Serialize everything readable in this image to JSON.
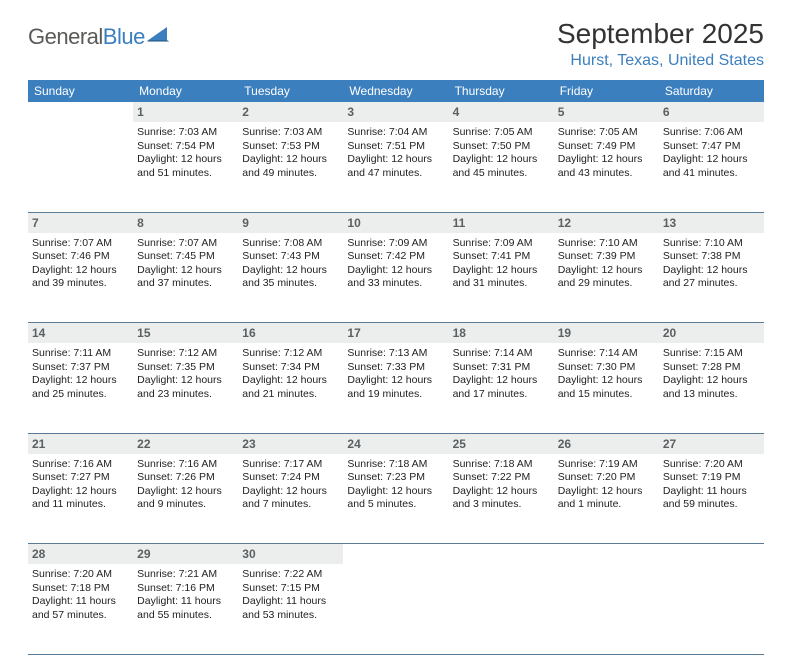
{
  "logo": {
    "general": "General",
    "blue": "Blue"
  },
  "title": "September 2025",
  "location": "Hurst, Texas, United States",
  "colors": {
    "header_bg": "#3b7fbf",
    "header_text": "#ffffff",
    "daynum_bg": "#eceeee",
    "daynum_text": "#5b6062",
    "body_text": "#222222",
    "sep_line": "#5a7a95",
    "location_text": "#3b7fbf",
    "logo_gray": "#5a5a56",
    "logo_blue": "#3b7fbf"
  },
  "headers": [
    "Sunday",
    "Monday",
    "Tuesday",
    "Wednesday",
    "Thursday",
    "Friday",
    "Saturday"
  ],
  "weeks": [
    [
      {
        "day": "",
        "text": ""
      },
      {
        "day": "1",
        "text": "Sunrise: 7:03 AM\nSunset: 7:54 PM\nDaylight: 12 hours and 51 minutes."
      },
      {
        "day": "2",
        "text": "Sunrise: 7:03 AM\nSunset: 7:53 PM\nDaylight: 12 hours and 49 minutes."
      },
      {
        "day": "3",
        "text": "Sunrise: 7:04 AM\nSunset: 7:51 PM\nDaylight: 12 hours and 47 minutes."
      },
      {
        "day": "4",
        "text": "Sunrise: 7:05 AM\nSunset: 7:50 PM\nDaylight: 12 hours and 45 minutes."
      },
      {
        "day": "5",
        "text": "Sunrise: 7:05 AM\nSunset: 7:49 PM\nDaylight: 12 hours and 43 minutes."
      },
      {
        "day": "6",
        "text": "Sunrise: 7:06 AM\nSunset: 7:47 PM\nDaylight: 12 hours and 41 minutes."
      }
    ],
    [
      {
        "day": "7",
        "text": "Sunrise: 7:07 AM\nSunset: 7:46 PM\nDaylight: 12 hours and 39 minutes."
      },
      {
        "day": "8",
        "text": "Sunrise: 7:07 AM\nSunset: 7:45 PM\nDaylight: 12 hours and 37 minutes."
      },
      {
        "day": "9",
        "text": "Sunrise: 7:08 AM\nSunset: 7:43 PM\nDaylight: 12 hours and 35 minutes."
      },
      {
        "day": "10",
        "text": "Sunrise: 7:09 AM\nSunset: 7:42 PM\nDaylight: 12 hours and 33 minutes."
      },
      {
        "day": "11",
        "text": "Sunrise: 7:09 AM\nSunset: 7:41 PM\nDaylight: 12 hours and 31 minutes."
      },
      {
        "day": "12",
        "text": "Sunrise: 7:10 AM\nSunset: 7:39 PM\nDaylight: 12 hours and 29 minutes."
      },
      {
        "day": "13",
        "text": "Sunrise: 7:10 AM\nSunset: 7:38 PM\nDaylight: 12 hours and 27 minutes."
      }
    ],
    [
      {
        "day": "14",
        "text": "Sunrise: 7:11 AM\nSunset: 7:37 PM\nDaylight: 12 hours and 25 minutes."
      },
      {
        "day": "15",
        "text": "Sunrise: 7:12 AM\nSunset: 7:35 PM\nDaylight: 12 hours and 23 minutes."
      },
      {
        "day": "16",
        "text": "Sunrise: 7:12 AM\nSunset: 7:34 PM\nDaylight: 12 hours and 21 minutes."
      },
      {
        "day": "17",
        "text": "Sunrise: 7:13 AM\nSunset: 7:33 PM\nDaylight: 12 hours and 19 minutes."
      },
      {
        "day": "18",
        "text": "Sunrise: 7:14 AM\nSunset: 7:31 PM\nDaylight: 12 hours and 17 minutes."
      },
      {
        "day": "19",
        "text": "Sunrise: 7:14 AM\nSunset: 7:30 PM\nDaylight: 12 hours and 15 minutes."
      },
      {
        "day": "20",
        "text": "Sunrise: 7:15 AM\nSunset: 7:28 PM\nDaylight: 12 hours and 13 minutes."
      }
    ],
    [
      {
        "day": "21",
        "text": "Sunrise: 7:16 AM\nSunset: 7:27 PM\nDaylight: 12 hours and 11 minutes."
      },
      {
        "day": "22",
        "text": "Sunrise: 7:16 AM\nSunset: 7:26 PM\nDaylight: 12 hours and 9 minutes."
      },
      {
        "day": "23",
        "text": "Sunrise: 7:17 AM\nSunset: 7:24 PM\nDaylight: 12 hours and 7 minutes."
      },
      {
        "day": "24",
        "text": "Sunrise: 7:18 AM\nSunset: 7:23 PM\nDaylight: 12 hours and 5 minutes."
      },
      {
        "day": "25",
        "text": "Sunrise: 7:18 AM\nSunset: 7:22 PM\nDaylight: 12 hours and 3 minutes."
      },
      {
        "day": "26",
        "text": "Sunrise: 7:19 AM\nSunset: 7:20 PM\nDaylight: 12 hours and 1 minute."
      },
      {
        "day": "27",
        "text": "Sunrise: 7:20 AM\nSunset: 7:19 PM\nDaylight: 11 hours and 59 minutes."
      }
    ],
    [
      {
        "day": "28",
        "text": "Sunrise: 7:20 AM\nSunset: 7:18 PM\nDaylight: 11 hours and 57 minutes."
      },
      {
        "day": "29",
        "text": "Sunrise: 7:21 AM\nSunset: 7:16 PM\nDaylight: 11 hours and 55 minutes."
      },
      {
        "day": "30",
        "text": "Sunrise: 7:22 AM\nSunset: 7:15 PM\nDaylight: 11 hours and 53 minutes."
      },
      {
        "day": "",
        "text": ""
      },
      {
        "day": "",
        "text": ""
      },
      {
        "day": "",
        "text": ""
      },
      {
        "day": "",
        "text": ""
      }
    ]
  ]
}
